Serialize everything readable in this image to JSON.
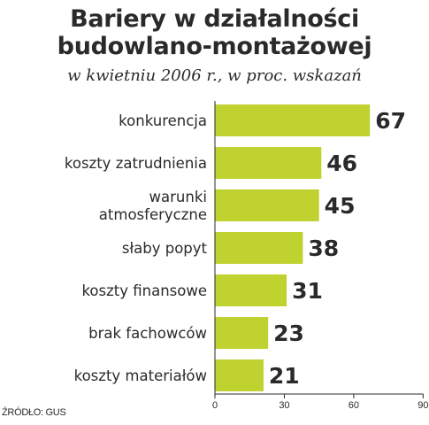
{
  "header": {
    "title_line1": "Bariery w działalności",
    "title_line2": "budowlano-montażowej",
    "subtitle": "w kwietniu 2006 r., w proc. wskazań"
  },
  "footer": {
    "source": "ŹRÓDŁO: GUS"
  },
  "colors": {
    "bar": "#bfd22f",
    "axis": "#2a2a2a",
    "text": "#2a2a2a"
  },
  "chart_data": {
    "type": "bar",
    "orientation": "horizontal",
    "title": "Bariery w działalności budowlano-montażowej",
    "subtitle": "w kwietniu 2006 r., w proc. wskazań",
    "categories": [
      [
        "konkurencja"
      ],
      [
        "koszty zatrudnienia"
      ],
      [
        "warunki",
        "atmosferyczne"
      ],
      [
        "słaby popyt"
      ],
      [
        "koszty finansowe"
      ],
      [
        "brak fachowców"
      ],
      [
        "koszty materiałów"
      ]
    ],
    "values": [
      67,
      46,
      45,
      38,
      31,
      23,
      21
    ],
    "value_labels": [
      "67",
      "46",
      "45",
      "38",
      "31",
      "23",
      "21"
    ],
    "xlim": [
      0,
      90
    ],
    "xticks": [
      0,
      30,
      60,
      90
    ],
    "xtick_labels": [
      "0",
      "30",
      "60",
      "90"
    ],
    "grid": false,
    "legend": "none"
  }
}
